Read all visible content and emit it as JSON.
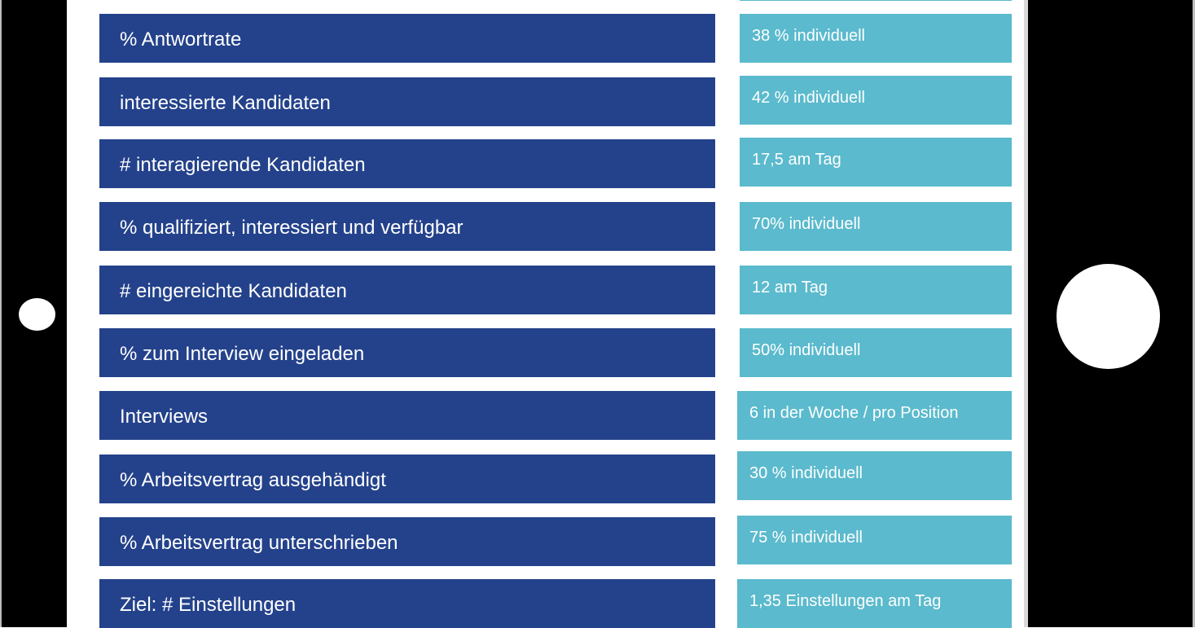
{
  "metrics": [
    {
      "label": "% Antwortrate",
      "value": "38 % individuell"
    },
    {
      "label": "interessierte Kandidaten",
      "value": "42 % individuell"
    },
    {
      "label": "# interagierende Kandidaten",
      "value": "17,5 am Tag"
    },
    {
      "label": "% qualifiziert, interessiert und verfügbar",
      "value": "70% individuell"
    },
    {
      "label": "# eingereichte Kandidaten",
      "value": "12 am Tag"
    },
    {
      "label": "% zum Interview eingeladen",
      "value": "50% individuell"
    },
    {
      "label": "Interviews",
      "value": "6 in der Woche / pro Position"
    },
    {
      "label": "% Arbeitsvertrag ausgehändigt",
      "value": "30 % individuell"
    },
    {
      "label": "% Arbeitsvertrag unterschrieben",
      "value": "75 % individuell"
    },
    {
      "label": "Ziel: # Einstellungen",
      "value": "1,35 Einstellungen am Tag"
    }
  ],
  "colors": {
    "label_bg": "#24428b",
    "value_bg": "#5bbacd",
    "device": "#000000"
  }
}
